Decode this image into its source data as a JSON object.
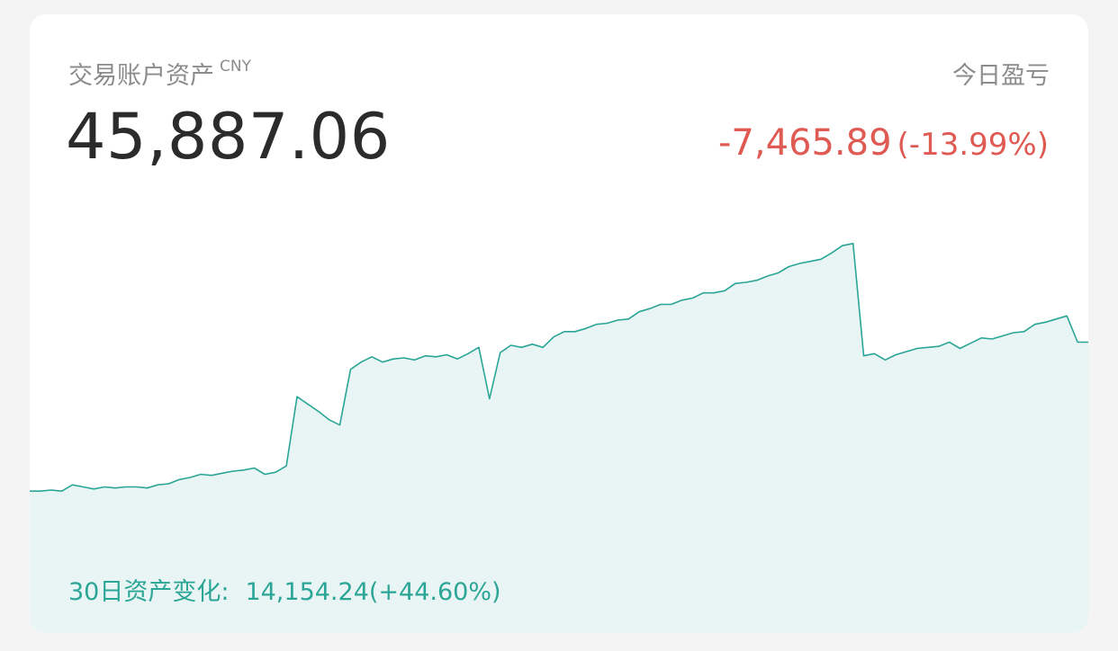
{
  "header": {
    "asset_label": "交易账户资产",
    "currency": "CNY",
    "pnl_label": "今日盈亏"
  },
  "summary": {
    "total_assets": "45,887.06",
    "daily_pnl": "-7,465.89",
    "daily_pnl_pct": "(-13.99%)"
  },
  "footer": {
    "change_label": "30日资产变化:",
    "change_value": "14,154.24(+44.60%)"
  },
  "colors": {
    "line": "#2aa596",
    "fill": "#e9f5f4",
    "negative": "#e05a54",
    "label": "#8c8c8c"
  },
  "chart_data": {
    "type": "area",
    "x": [
      0,
      1,
      2,
      3,
      4,
      5,
      6,
      7,
      8,
      9,
      10,
      11,
      12,
      13,
      14,
      15,
      16,
      17,
      18,
      19,
      20,
      21,
      22,
      23,
      24,
      25,
      26,
      27,
      28,
      29,
      30,
      31,
      32,
      33,
      34,
      35,
      36,
      37,
      38,
      39,
      40,
      41,
      42,
      43,
      44,
      45,
      46,
      47,
      48,
      49,
      50,
      51,
      52,
      53,
      54,
      55,
      56,
      57,
      58,
      59,
      60,
      61,
      62,
      63,
      64,
      65,
      66,
      67,
      68,
      69,
      70,
      71,
      72,
      73,
      74,
      75,
      76,
      77,
      78,
      79,
      80,
      81,
      82,
      83,
      84,
      85,
      86,
      87,
      88,
      89,
      90,
      91,
      92,
      93,
      94,
      95,
      96,
      97,
      98,
      99
    ],
    "values": [
      31700,
      31700,
      31800,
      31700,
      32300,
      32100,
      31900,
      32100,
      32000,
      32100,
      32100,
      32000,
      32300,
      32400,
      32800,
      33000,
      33300,
      33200,
      33400,
      33600,
      33700,
      33900,
      33300,
      33500,
      34100,
      40700,
      40000,
      39300,
      38500,
      38000,
      43300,
      44000,
      44500,
      44000,
      44300,
      44400,
      44200,
      44600,
      44500,
      44700,
      44300,
      44800,
      45400,
      40500,
      44900,
      45600,
      45400,
      45700,
      45400,
      46400,
      46900,
      46900,
      47200,
      47600,
      47700,
      48000,
      48100,
      48800,
      49100,
      49500,
      49500,
      49900,
      50100,
      50600,
      50600,
      50800,
      51500,
      51600,
      51800,
      52200,
      52500,
      53100,
      53400,
      53600,
      53800,
      54400,
      55100,
      55300,
      44600,
      44800,
      44200,
      44700,
      45000,
      45300,
      45400,
      45500,
      45900,
      45300,
      45800,
      46300,
      46200,
      46500,
      46800,
      46900,
      47600,
      47800,
      48100,
      48400,
      45900,
      45900
    ],
    "ylim": [
      24000,
      60000
    ],
    "grid": false
  }
}
